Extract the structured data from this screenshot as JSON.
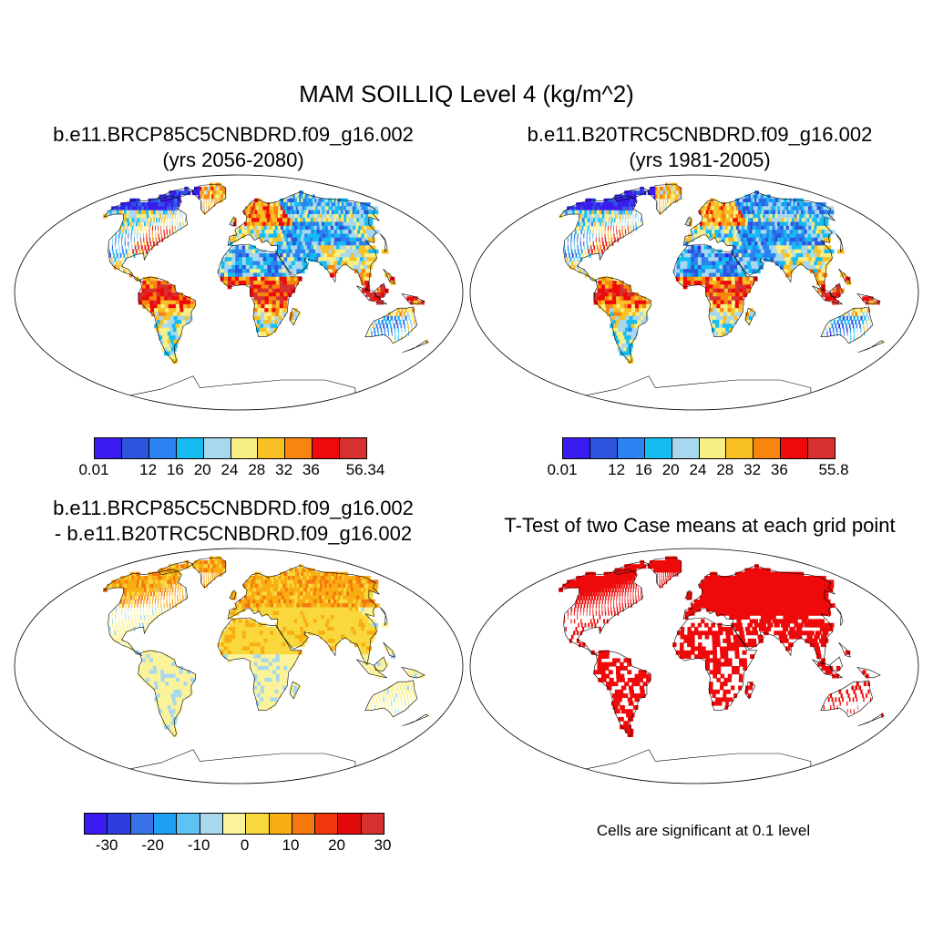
{
  "title": "MAM SOILLIQ Level 4 (kg/m^2)",
  "panels": [
    {
      "id": "case1",
      "title_line1": "b.e11.BRCP85C5CNBDRD.f09_g16.002",
      "title_line2": "(yrs 2056-2080)",
      "fill": "absolute",
      "colorbar": {
        "colors": [
          "#3a1cf0",
          "#2d54dc",
          "#2a83f0",
          "#14bcf2",
          "#a8d8ee",
          "#f8f084",
          "#f8c024",
          "#f7850f",
          "#ee0a0a",
          "#d63030"
        ],
        "labels": [
          "0.01",
          "12",
          "16",
          "20",
          "24",
          "28",
          "32",
          "36",
          "56.34"
        ]
      }
    },
    {
      "id": "case2",
      "title_line1": "b.e11.B20TRC5CNBDRD.f09_g16.002",
      "title_line2": "(yrs 1981-2005)",
      "fill": "absolute",
      "colorbar": {
        "colors": [
          "#3a1cf0",
          "#2d54dc",
          "#2a83f0",
          "#14bcf2",
          "#a8d8ee",
          "#f8f084",
          "#f8c024",
          "#f7850f",
          "#ee0a0a",
          "#d63030"
        ],
        "labels": [
          "0.01",
          "12",
          "16",
          "20",
          "24",
          "28",
          "32",
          "36",
          "55.8"
        ]
      }
    },
    {
      "id": "diff",
      "title_line1": "b.e11.BRCP85C5CNBDRD.f09_g16.002",
      "title_line2": "- b.e11.B20TRC5CNBDRD.f09_g16.002",
      "fill": "difference",
      "colorbar": {
        "colors": [
          "#3a1cf0",
          "#2d3ee0",
          "#3a72ea",
          "#1ea0f5",
          "#5ec2f2",
          "#a8d8ee",
          "#fbf39a",
          "#f8d83c",
          "#f8ae12",
          "#f4780c",
          "#f0380c",
          "#e00a0a",
          "#d63030"
        ],
        "labels": [
          "-30",
          "-20",
          "-10",
          "0",
          "10",
          "20",
          "30"
        ]
      }
    },
    {
      "id": "ttest",
      "title_line1": "T-Test of two Case means at each grid point",
      "title_line2": "",
      "fill": "significance",
      "sig_color": "#ee0a0a",
      "note": "Cells are significant at 0.1 level"
    }
  ]
}
